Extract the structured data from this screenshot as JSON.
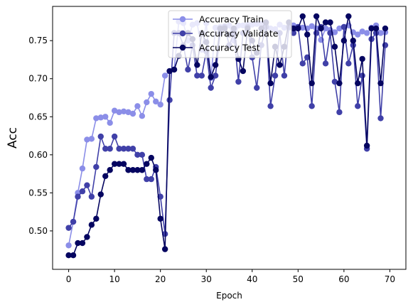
{
  "chart_data": {
    "type": "line",
    "xlabel": "Epoch",
    "ylabel": "Acc",
    "ylabel_color": "#1010c8",
    "xlim": [
      -3.5,
      73.5
    ],
    "ylim": [
      0.4495,
      0.795
    ],
    "x_ticks": [
      0,
      10,
      20,
      30,
      40,
      50,
      60,
      70
    ],
    "y_ticks": [
      0.5,
      0.55,
      0.6,
      0.65,
      0.7,
      0.75
    ],
    "y_tick_labels": [
      "0.50",
      "0.55",
      "0.60",
      "0.65",
      "0.70",
      "0.75"
    ],
    "grid": false,
    "legend_position": "top-center",
    "series": [
      {
        "name": "Accuracy Train",
        "color": "#8b8ee8",
        "values": [
          0.481,
          0.512,
          0.55,
          0.582,
          0.62,
          0.621,
          0.648,
          0.649,
          0.65,
          0.642,
          0.658,
          0.656,
          0.657,
          0.656,
          0.654,
          0.664,
          0.651,
          0.669,
          0.68,
          0.67,
          0.666,
          0.704,
          0.71,
          0.712,
          0.775,
          0.773,
          0.75,
          0.771,
          0.773,
          0.738,
          0.773,
          0.701,
          0.767,
          0.768,
          0.769,
          0.77,
          0.75,
          0.77,
          0.77,
          0.771,
          0.771,
          0.772,
          0.772,
          0.77,
          0.766,
          0.765,
          0.771,
          0.767,
          0.767,
          0.77,
          0.768,
          0.767,
          0.766,
          0.769,
          0.766,
          0.751,
          0.766,
          0.764,
          0.761,
          0.766,
          0.768,
          0.77,
          0.761,
          0.758,
          0.762,
          0.76,
          0.767,
          0.77,
          0.76,
          0.761
        ]
      },
      {
        "name": "Accuracy Validate",
        "color": "#4040a8",
        "values": [
          0.504,
          0.512,
          0.545,
          0.552,
          0.56,
          0.545,
          0.584,
          0.624,
          0.608,
          0.608,
          0.624,
          0.608,
          0.608,
          0.608,
          0.608,
          0.6,
          0.6,
          0.568,
          0.568,
          0.584,
          0.545,
          0.496,
          0.672,
          0.76,
          0.76,
          0.744,
          0.712,
          0.744,
          0.704,
          0.704,
          0.736,
          0.688,
          0.704,
          0.76,
          0.768,
          0.744,
          0.76,
          0.696,
          0.76,
          0.768,
          0.728,
          0.688,
          0.744,
          0.768,
          0.664,
          0.704,
          0.76,
          0.704,
          0.768,
          0.76,
          0.768,
          0.72,
          0.728,
          0.664,
          0.76,
          0.768,
          0.72,
          0.76,
          0.696,
          0.656,
          0.768,
          0.72,
          0.744,
          0.664,
          0.704,
          0.608,
          0.752,
          0.76,
          0.648,
          0.744
        ]
      },
      {
        "name": "Accuracy Test",
        "color": "#050560",
        "values": [
          0.468,
          0.468,
          0.484,
          0.484,
          0.492,
          0.508,
          0.516,
          0.548,
          0.572,
          0.58,
          0.588,
          0.588,
          0.588,
          0.58,
          0.58,
          0.58,
          0.58,
          0.588,
          0.596,
          0.58,
          0.516,
          0.476,
          0.71,
          0.712,
          0.73,
          0.742,
          0.76,
          0.752,
          0.718,
          0.76,
          0.748,
          0.702,
          0.718,
          0.766,
          0.766,
          0.758,
          0.766,
          0.726,
          0.71,
          0.766,
          0.75,
          0.734,
          0.766,
          0.774,
          0.694,
          0.742,
          0.718,
          0.742,
          0.774,
          0.766,
          0.766,
          0.782,
          0.758,
          0.694,
          0.782,
          0.766,
          0.774,
          0.774,
          0.742,
          0.694,
          0.75,
          0.782,
          0.75,
          0.694,
          0.726,
          0.612,
          0.766,
          0.766,
          0.694,
          0.766
        ]
      }
    ]
  }
}
